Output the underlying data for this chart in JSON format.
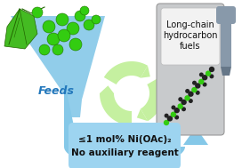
{
  "bg_color": "#ffffff",
  "funnel_color": "#85c8e8",
  "funnel_label": "Feeds",
  "funnel_label_color": "#2277bb",
  "box_color": "#9dd4f0",
  "box_text_line1": "≤1 mol% Ni(OAc)₂",
  "box_text_line2": "No auxiliary reagent",
  "box_text_color": "#111111",
  "recycle_color": "#c5f0a0",
  "pump_body_color": "#c8cacc",
  "pump_text_line1": "Long-chain",
  "pump_text_line2": "hydrocarbon",
  "pump_text_line3": "fuels",
  "pump_text_color": "#111111",
  "arrow_color": "#85c8e8",
  "berry_color": "#33cc11",
  "berry_edge_color": "#227700",
  "leaf_color": "#44bb22",
  "leaf_edge_color": "#226600",
  "molecule_green": "#33cc11",
  "molecule_dark": "#222222",
  "nozzle_color": "#8899aa",
  "nozzle_tube_color": "#8899aa"
}
